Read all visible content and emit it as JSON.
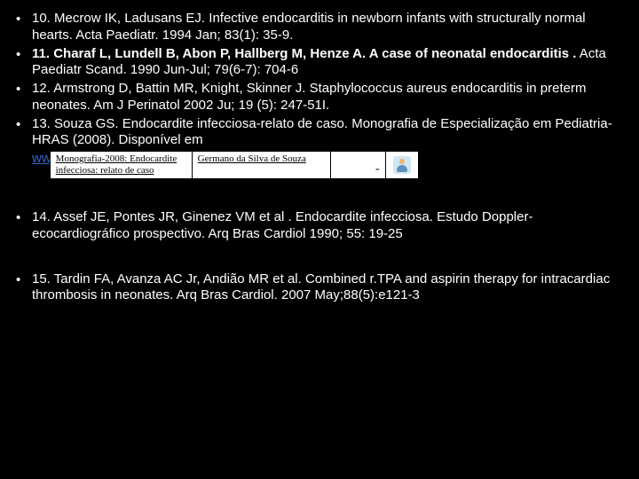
{
  "bullet_char": "•",
  "refs": [
    {
      "num": "10.",
      "prefix": " Mecrow IK, Ladusans EJ. Infective endocarditis in newborn infants with structurally normal hearts",
      "suffix": ". Acta Paediatr. 1994 Jan; 83(1): 35-9.",
      "bold_title": ""
    },
    {
      "num": "11.",
      "prefix": " Charaf L, Lundell B, Abon P, Hallberg M, Henze A. ",
      "bold_title": "A case of neonatal endocarditis .",
      "suffix": "  Acta Paediatr Scand. 1990 Jun-Jul; 79(6-7): 704-6",
      "all_bold_prefix": true
    },
    {
      "num": "12.",
      "prefix": " Armstrong D, Battin MR, Knight, Skinner J. Staphylococcus aureus endocarditis in preterm neonates. Am J Perinatol 2002 Ju; 19 (5): 247-51I.",
      "bold_title": "",
      "suffix": ""
    },
    {
      "num": "13.",
      "prefix": " Souza GS. Endocardite  infecciosa-relato de caso. Monografia de Especialização em Pediatria-HRAS (2008). Disponível em",
      "bold_title": "",
      "suffix": ""
    }
  ],
  "embed": {
    "ww": "ww",
    "title_line1": "Monografia-2008: Endocardite",
    "title_line2": "infecciosa: relato de caso",
    "author": "Germano da Silva de Souza",
    "dash": "-"
  },
  "refs_lower": [
    {
      "num": "14.",
      "text": " Assef JE, Pontes JR, Ginenez VM et al . Endocardite infecciosa. Estudo Doppler-ecocardiográfico prospectivo. Arq Bras Cardiol 1990; 55: 19-25"
    },
    {
      "num": "15.",
      "text": " Tardin FA, Avanza AC Jr, Andião MR  et al. Combined r.TPA and aspirin therapy for intracardiac thrombosis in neonates. Arq Bras Cardiol. 2007 May;88(5):e121-3"
    }
  ],
  "colors": {
    "background": "#000000",
    "text": "#ffffff",
    "link": "#3366cc",
    "embed_bg": "#ffffff"
  }
}
